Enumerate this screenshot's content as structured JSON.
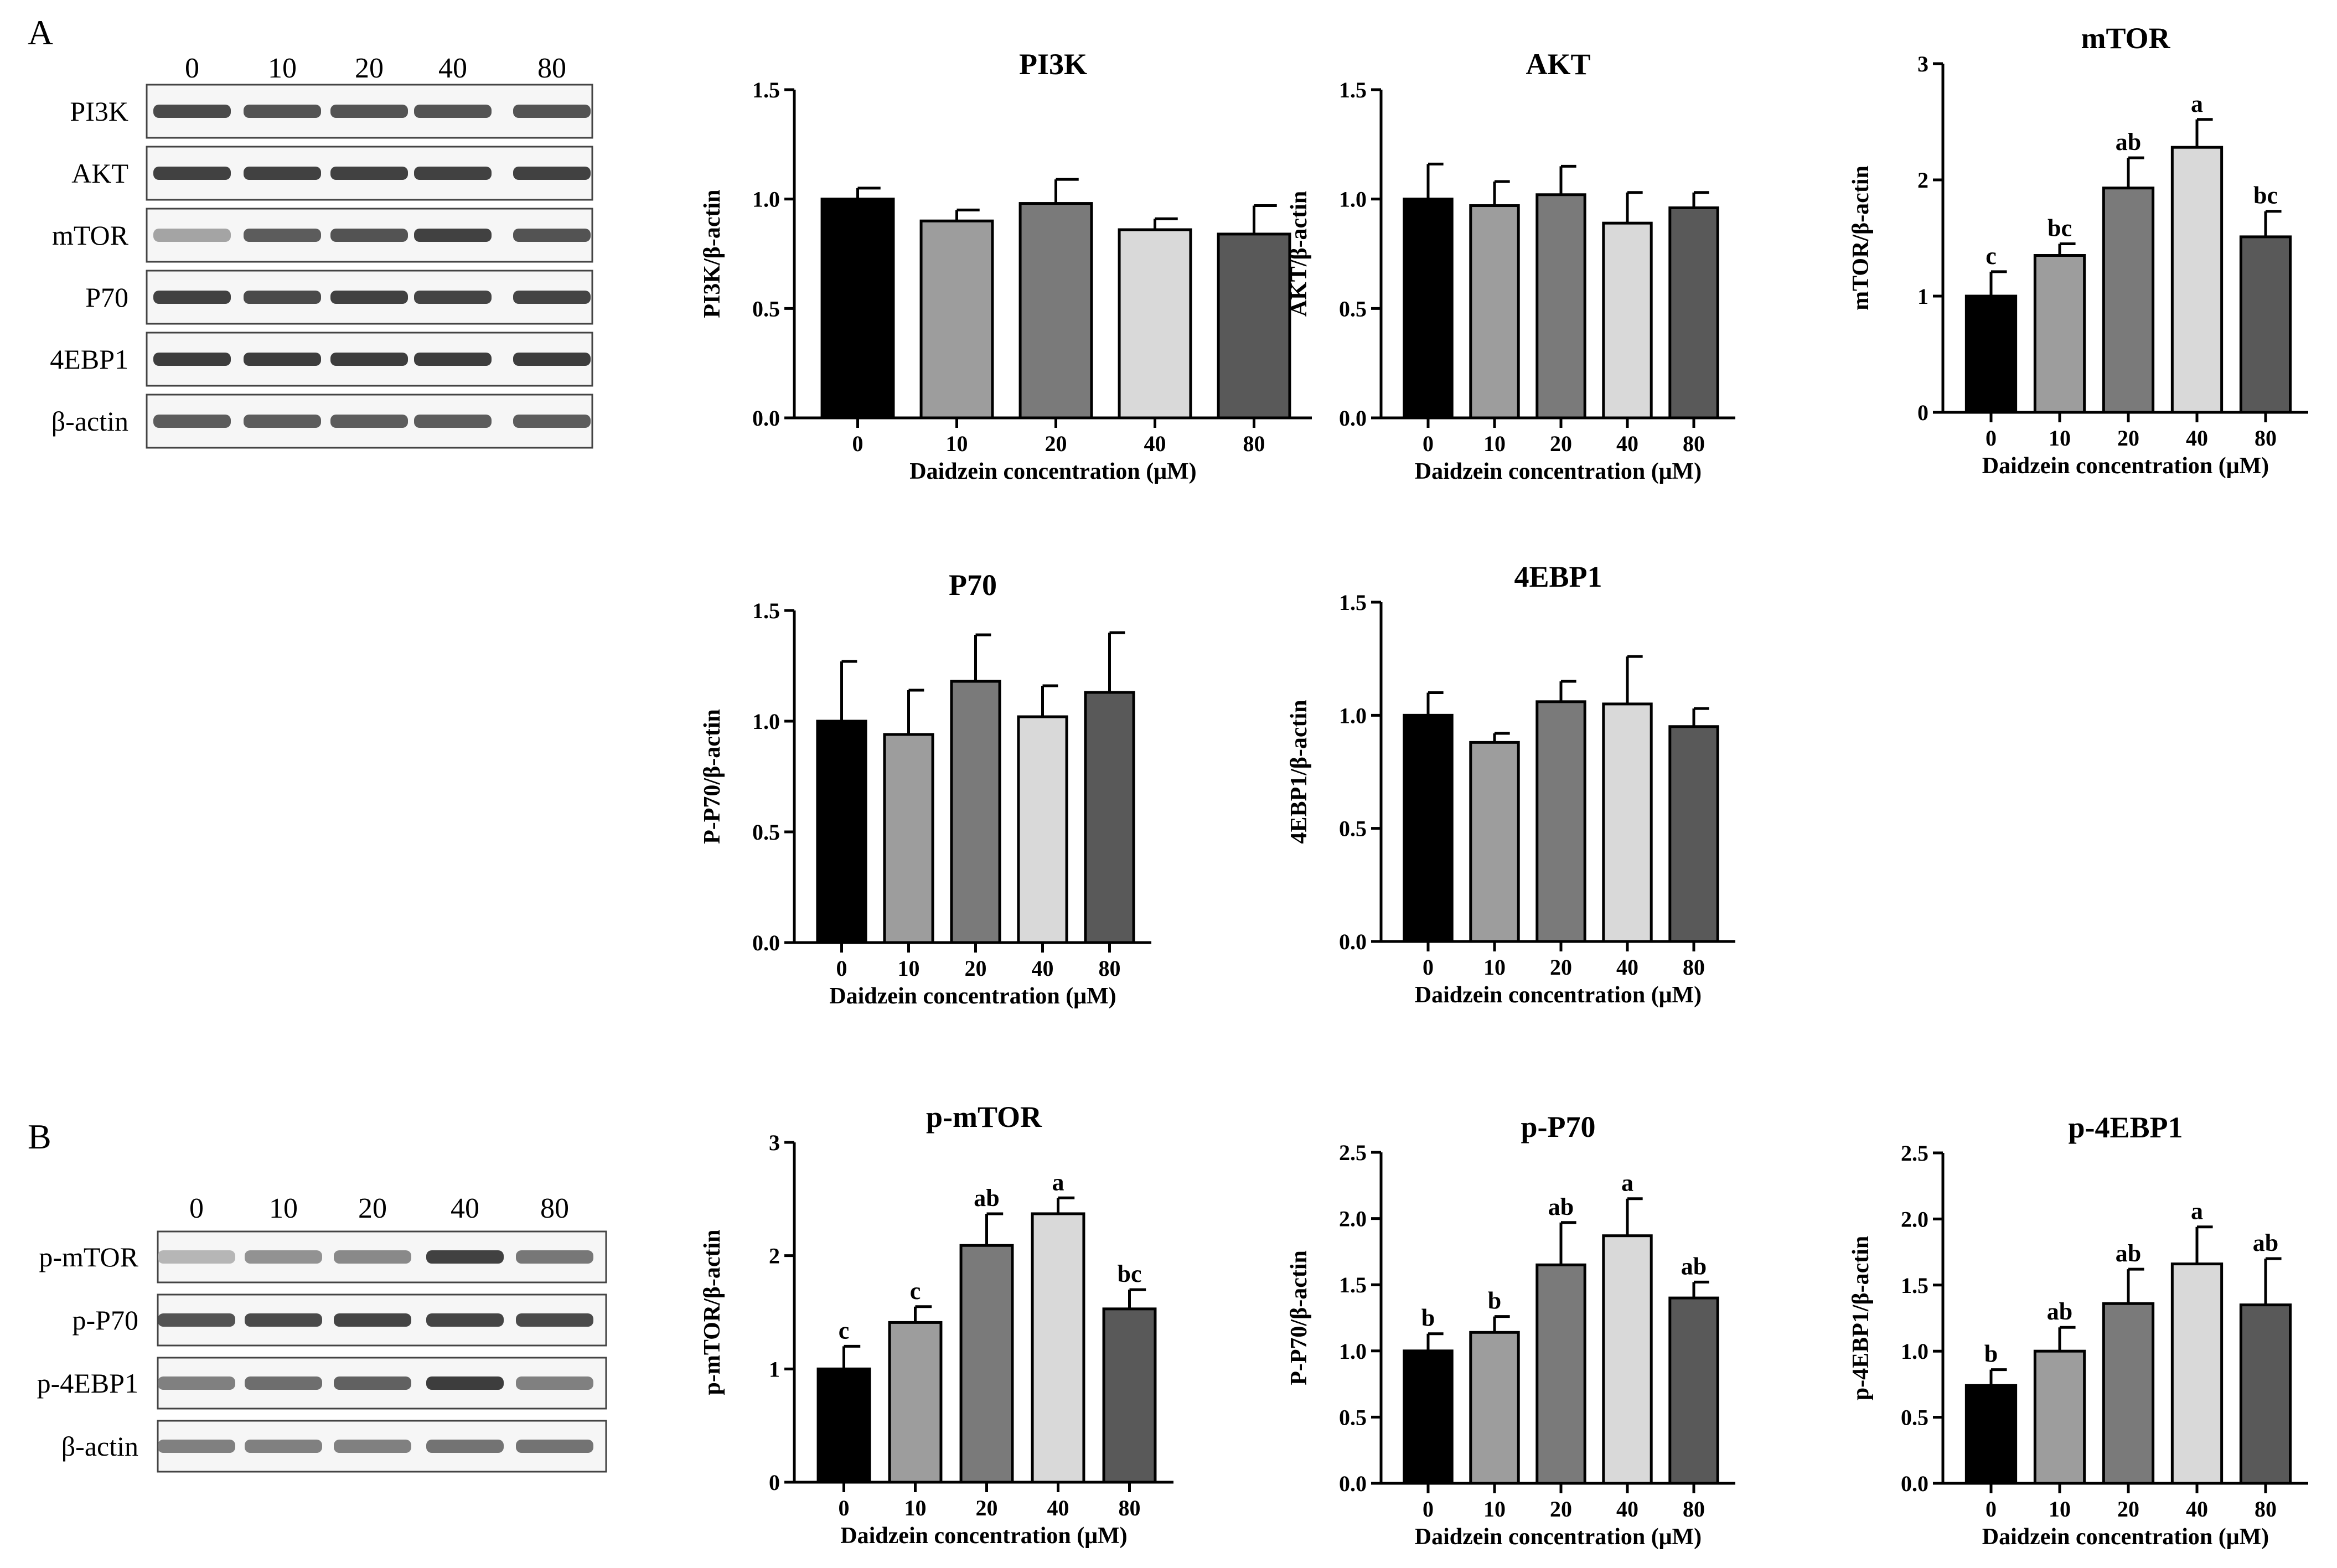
{
  "panels": {
    "a": "A",
    "b": "B"
  },
  "blot_a": {
    "lanes": [
      "0",
      "10",
      "20",
      "40",
      "80"
    ],
    "rows": [
      "PI3K",
      "AKT",
      "mTOR",
      "P70",
      "4EBP1",
      "β-actin"
    ],
    "intensity": [
      [
        0.85,
        0.8,
        0.8,
        0.8,
        0.8
      ],
      [
        0.9,
        0.9,
        0.9,
        0.9,
        0.9
      ],
      [
        0.35,
        0.75,
        0.8,
        0.9,
        0.8
      ],
      [
        0.9,
        0.85,
        0.9,
        0.88,
        0.88
      ],
      [
        0.92,
        0.92,
        0.92,
        0.92,
        0.92
      ],
      [
        0.75,
        0.75,
        0.75,
        0.75,
        0.75
      ]
    ]
  },
  "blot_b": {
    "lanes": [
      "0",
      "10",
      "20",
      "40",
      "80"
    ],
    "rows": [
      "p-mTOR",
      "p-P70",
      "p-4EBP1",
      "β-actin"
    ],
    "intensity": [
      [
        0.25,
        0.45,
        0.5,
        0.9,
        0.6
      ],
      [
        0.8,
        0.85,
        0.88,
        0.88,
        0.85
      ],
      [
        0.55,
        0.65,
        0.72,
        0.92,
        0.55
      ],
      [
        0.55,
        0.55,
        0.55,
        0.62,
        0.62
      ]
    ]
  },
  "chart_data": [
    {
      "id": "pi3k",
      "type": "bar",
      "title": "PI3K",
      "xlabel": "Daidzein concentration (μM)",
      "ylabel": "PI3K/β-actin",
      "categories": [
        "0",
        "10",
        "20",
        "40",
        "80"
      ],
      "values": [
        1.0,
        0.9,
        0.98,
        0.86,
        0.84
      ],
      "errors": [
        0.05,
        0.05,
        0.11,
        0.05,
        0.13
      ],
      "ylim": [
        0,
        1.5
      ],
      "yticks": [
        "0.0",
        "0.5",
        "1.0",
        "1.5"
      ],
      "sig": [
        "",
        "",
        "",
        "",
        ""
      ],
      "colors": [
        "#000000",
        "#9d9d9d",
        "#7a7a7a",
        "#d9d9d9",
        "#595959"
      ]
    },
    {
      "id": "akt",
      "type": "bar",
      "title": "AKT",
      "xlabel": "Daidzein concentration (μM)",
      "ylabel": "AKT/β-actin",
      "categories": [
        "0",
        "10",
        "20",
        "40",
        "80"
      ],
      "values": [
        1.0,
        0.97,
        1.02,
        0.89,
        0.96
      ],
      "errors": [
        0.16,
        0.11,
        0.13,
        0.14,
        0.07
      ],
      "ylim": [
        0,
        1.5
      ],
      "yticks": [
        "0.0",
        "0.5",
        "1.0",
        "1.5"
      ],
      "sig": [
        "",
        "",
        "",
        "",
        ""
      ],
      "colors": [
        "#000000",
        "#9d9d9d",
        "#7a7a7a",
        "#d9d9d9",
        "#595959"
      ]
    },
    {
      "id": "mtor",
      "type": "bar",
      "title": "mTOR",
      "xlabel": "Daidzein concentration (μM)",
      "ylabel": "mTOR/β-actin",
      "categories": [
        "0",
        "10",
        "20",
        "40",
        "80"
      ],
      "values": [
        1.0,
        1.35,
        1.93,
        2.28,
        1.51
      ],
      "errors": [
        0.21,
        0.1,
        0.26,
        0.24,
        0.22
      ],
      "ylim": [
        0,
        3
      ],
      "yticks": [
        "0",
        "1",
        "2",
        "3"
      ],
      "sig": [
        "c",
        "bc",
        "ab",
        "a",
        "bc"
      ],
      "colors": [
        "#000000",
        "#9d9d9d",
        "#7a7a7a",
        "#d9d9d9",
        "#595959"
      ]
    },
    {
      "id": "p70",
      "type": "bar",
      "title": "P70",
      "xlabel": "Daidzein concentration (μM)",
      "ylabel": "P-P70/β-actin",
      "categories": [
        "0",
        "10",
        "20",
        "40",
        "80"
      ],
      "values": [
        1.0,
        0.94,
        1.18,
        1.02,
        1.13
      ],
      "errors": [
        0.27,
        0.2,
        0.21,
        0.14,
        0.27
      ],
      "ylim": [
        0,
        1.5
      ],
      "yticks": [
        "0.0",
        "0.5",
        "1.0",
        "1.5"
      ],
      "sig": [
        "",
        "",
        "",
        "",
        ""
      ],
      "colors": [
        "#000000",
        "#9d9d9d",
        "#7a7a7a",
        "#d9d9d9",
        "#595959"
      ]
    },
    {
      "id": "4ebp1",
      "type": "bar",
      "title": "4EBP1",
      "xlabel": "Daidzein concentration (μM)",
      "ylabel": "4EBP1/β-actin",
      "categories": [
        "0",
        "10",
        "20",
        "40",
        "80"
      ],
      "values": [
        1.0,
        0.88,
        1.06,
        1.05,
        0.95
      ],
      "errors": [
        0.1,
        0.04,
        0.09,
        0.21,
        0.08
      ],
      "ylim": [
        0,
        1.5
      ],
      "yticks": [
        "0.0",
        "0.5",
        "1.0",
        "1.5"
      ],
      "sig": [
        "",
        "",
        "",
        "",
        ""
      ],
      "colors": [
        "#000000",
        "#9d9d9d",
        "#7a7a7a",
        "#d9d9d9",
        "#595959"
      ]
    },
    {
      "id": "pmtor",
      "type": "bar",
      "title": "p-mTOR",
      "xlabel": "Daidzein concentration (μM)",
      "ylabel": "p-mTOR/β-actin",
      "categories": [
        "0",
        "10",
        "20",
        "40",
        "80"
      ],
      "values": [
        1.0,
        1.41,
        2.09,
        2.37,
        1.53
      ],
      "errors": [
        0.2,
        0.14,
        0.28,
        0.14,
        0.17
      ],
      "ylim": [
        0,
        3
      ],
      "yticks": [
        "0",
        "1",
        "2",
        "3"
      ],
      "sig": [
        "c",
        "c",
        "ab",
        "a",
        "bc"
      ],
      "colors": [
        "#000000",
        "#9d9d9d",
        "#7a7a7a",
        "#d9d9d9",
        "#595959"
      ]
    },
    {
      "id": "pp70",
      "type": "bar",
      "title": "p-P70",
      "xlabel": "Daidzein concentration (μM)",
      "ylabel": "P-P70/β-actin",
      "categories": [
        "0",
        "10",
        "20",
        "40",
        "80"
      ],
      "values": [
        1.0,
        1.14,
        1.65,
        1.87,
        1.4
      ],
      "errors": [
        0.13,
        0.12,
        0.32,
        0.28,
        0.12
      ],
      "ylim": [
        0,
        2.5
      ],
      "yticks": [
        "0.0",
        "0.5",
        "1.0",
        "1.5",
        "2.0",
        "2.5"
      ],
      "sig": [
        "b",
        "b",
        "ab",
        "a",
        "ab"
      ],
      "colors": [
        "#000000",
        "#9d9d9d",
        "#7a7a7a",
        "#d9d9d9",
        "#595959"
      ]
    },
    {
      "id": "p4ebp1",
      "type": "bar",
      "title": "p-4EBP1",
      "xlabel": "Daidzein concentration (μM)",
      "ylabel": "p-4EBP1/β-actin",
      "categories": [
        "0",
        "10",
        "20",
        "40",
        "80"
      ],
      "values": [
        0.74,
        1.0,
        1.36,
        1.66,
        1.35
      ],
      "errors": [
        0.12,
        0.18,
        0.26,
        0.28,
        0.35
      ],
      "ylim": [
        0,
        2.5
      ],
      "yticks": [
        "0.0",
        "0.5",
        "1.0",
        "1.5",
        "2.0",
        "2.5"
      ],
      "sig": [
        "b",
        "ab",
        "ab",
        "a",
        "ab"
      ],
      "colors": [
        "#000000",
        "#9d9d9d",
        "#7a7a7a",
        "#d9d9d9",
        "#595959"
      ]
    }
  ]
}
